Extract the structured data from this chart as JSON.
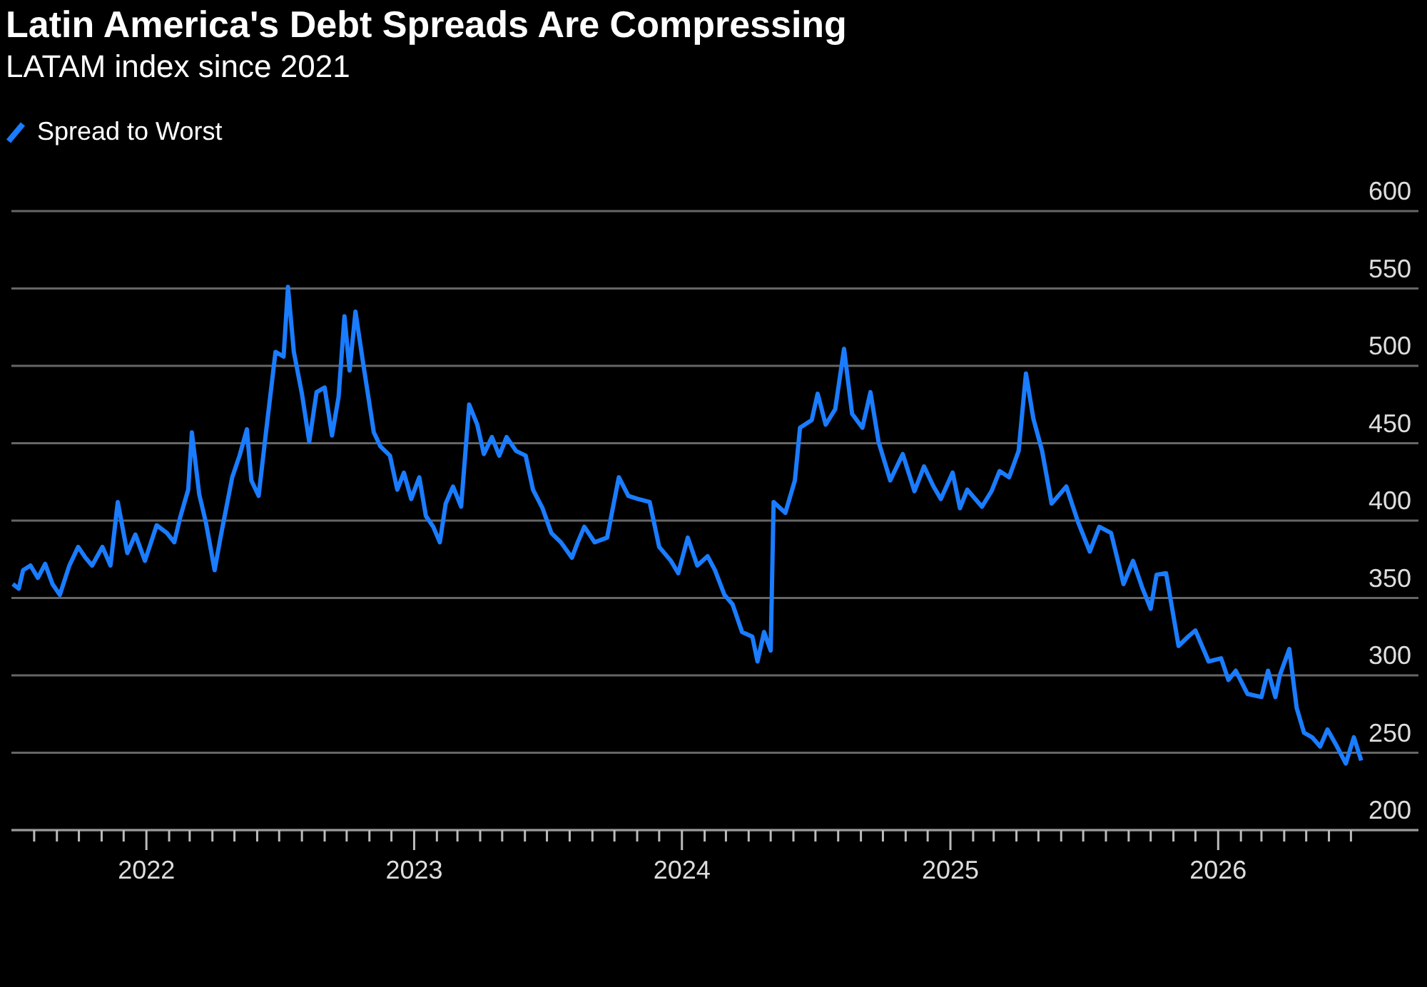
{
  "chart_data": {
    "type": "line",
    "title": "Latin America's Debt Spreads Are Compressing",
    "subtitle": "LATAM index since 2021",
    "x": [
      "2021-07-03",
      "2021-07-11",
      "2021-07-17",
      "2021-07-27",
      "2021-08-06",
      "2021-08-16",
      "2021-08-26",
      "2021-09-05",
      "2021-09-18",
      "2021-09-30",
      "2021-10-10",
      "2021-10-19",
      "2021-11-02",
      "2021-11-13",
      "2021-11-23",
      "2021-12-06",
      "2021-12-17",
      "2021-12-30",
      "2022-01-15",
      "2022-01-29",
      "2022-02-08",
      "2022-02-16",
      "2022-02-27",
      "2022-03-04",
      "2022-03-14",
      "2022-03-23",
      "2022-04-04",
      "2022-04-12",
      "2022-04-28",
      "2022-05-08",
      "2022-05-18",
      "2022-05-24",
      "2022-06-03",
      "2022-06-13",
      "2022-06-26",
      "2022-07-07",
      "2022-07-13",
      "2022-07-21",
      "2022-08-01",
      "2022-08-11",
      "2022-08-21",
      "2022-09-01",
      "2022-09-11",
      "2022-09-20",
      "2022-09-28",
      "2022-10-05",
      "2022-10-13",
      "2022-10-24",
      "2022-11-07",
      "2022-11-16",
      "2022-11-29",
      "2022-12-09",
      "2022-12-18",
      "2022-12-28",
      "2023-01-08",
      "2023-01-17",
      "2023-01-27",
      "2023-02-05",
      "2023-02-13",
      "2023-02-23",
      "2023-03-06",
      "2023-03-17",
      "2023-03-28",
      "2023-04-06",
      "2023-04-17",
      "2023-04-27",
      "2023-05-07",
      "2023-05-20",
      "2023-06-02",
      "2023-06-12",
      "2023-06-25",
      "2023-07-07",
      "2023-07-20",
      "2023-08-04",
      "2023-08-12",
      "2023-08-21",
      "2023-09-04",
      "2023-09-21",
      "2023-10-07",
      "2023-10-20",
      "2023-11-02",
      "2023-11-18",
      "2023-12-01",
      "2023-12-17",
      "2023-12-27",
      "2024-01-09",
      "2024-01-22",
      "2024-02-05",
      "2024-02-15",
      "2024-02-28",
      "2024-03-10",
      "2024-03-23",
      "2024-04-06",
      "2024-04-13",
      "2024-04-22",
      "2024-05-01",
      "2024-05-05",
      "2024-05-21",
      "2024-06-03",
      "2024-06-10",
      "2024-06-26",
      "2024-07-04",
      "2024-07-15",
      "2024-07-28",
      "2024-08-09",
      "2024-08-20",
      "2024-09-03",
      "2024-09-14",
      "2024-09-25",
      "2024-10-11",
      "2024-10-28",
      "2024-11-13",
      "2024-11-26",
      "2024-12-09",
      "2024-12-19",
      "2025-01-04",
      "2025-01-14",
      "2025-01-24",
      "2025-02-13",
      "2025-02-26",
      "2025-03-09",
      "2025-03-22",
      "2025-04-04",
      "2025-04-14",
      "2025-04-24",
      "2025-05-06",
      "2025-05-19",
      "2025-06-08",
      "2025-06-24",
      "2025-07-10",
      "2025-07-23",
      "2025-08-08",
      "2025-08-25",
      "2025-09-07",
      "2025-09-20",
      "2025-10-01",
      "2025-10-09",
      "2025-10-22",
      "2025-11-08",
      "2025-11-21",
      "2025-12-01",
      "2025-12-19",
      "2026-01-05",
      "2026-01-15",
      "2026-01-25",
      "2026-02-10",
      "2026-03-01",
      "2026-03-10",
      "2026-03-20",
      "2026-03-26",
      "2026-04-08",
      "2026-04-18",
      "2026-04-28",
      "2026-05-09",
      "2026-05-20",
      "2026-05-30",
      "2026-06-12",
      "2026-06-24",
      "2026-07-05",
      "2026-07-15"
    ],
    "series": [
      {
        "name": "Spread to Worst",
        "color": "#1a7cff",
        "values": [
          359,
          356,
          368,
          371,
          363,
          372,
          359,
          352,
          371,
          383,
          376,
          371,
          383,
          371,
          412,
          379,
          391,
          374,
          397,
          392,
          386,
          402,
          420,
          457,
          417,
          399,
          368,
          389,
          428,
          442,
          459,
          426,
          416,
          457,
          509,
          506,
          551,
          509,
          482,
          451,
          483,
          486,
          455,
          480,
          532,
          497,
          535,
          500,
          457,
          448,
          442,
          420,
          431,
          414,
          428,
          403,
          396,
          386,
          411,
          422,
          409,
          475,
          462,
          443,
          454,
          442,
          454,
          445,
          442,
          420,
          408,
          392,
          386,
          376,
          386,
          396,
          386,
          389,
          428,
          416,
          414,
          412,
          383,
          374,
          366,
          389,
          371,
          377,
          368,
          352,
          346,
          328,
          325,
          309,
          328,
          316,
          412,
          405,
          426,
          460,
          465,
          482,
          462,
          472,
          511,
          469,
          460,
          483,
          451,
          426,
          443,
          419,
          435,
          422,
          414,
          431,
          408,
          420,
          409,
          419,
          432,
          428,
          445,
          495,
          466,
          445,
          411,
          422,
          399,
          380,
          396,
          392,
          359,
          374,
          356,
          343,
          365,
          366,
          319,
          325,
          329,
          309,
          311,
          297,
          303,
          288,
          286,
          303,
          286,
          300,
          317,
          279,
          263,
          260,
          254,
          265,
          254,
          243,
          260,
          245
        ]
      }
    ],
    "xlim": [
      "2021-07-01",
      "2026-10-01"
    ],
    "xticks": [
      {
        "value": "2021-08-01",
        "label": null
      },
      {
        "value": "2021-09-01",
        "label": null
      },
      {
        "value": "2021-10-01",
        "label": null
      },
      {
        "value": "2021-11-01",
        "label": null
      },
      {
        "value": "2021-12-01",
        "label": null
      },
      {
        "value": "2022-01-01",
        "label": "2022"
      },
      {
        "value": "2022-02-01",
        "label": null
      },
      {
        "value": "2022-03-01",
        "label": null
      },
      {
        "value": "2022-04-01",
        "label": null
      },
      {
        "value": "2022-05-01",
        "label": null
      },
      {
        "value": "2022-06-01",
        "label": null
      },
      {
        "value": "2022-07-01",
        "label": null
      },
      {
        "value": "2022-08-01",
        "label": null
      },
      {
        "value": "2022-09-01",
        "label": null
      },
      {
        "value": "2022-10-01",
        "label": null
      },
      {
        "value": "2022-11-01",
        "label": null
      },
      {
        "value": "2022-12-01",
        "label": null
      },
      {
        "value": "2023-01-01",
        "label": "2023"
      },
      {
        "value": "2023-02-01",
        "label": null
      },
      {
        "value": "2023-03-01",
        "label": null
      },
      {
        "value": "2023-04-01",
        "label": null
      },
      {
        "value": "2023-05-01",
        "label": null
      },
      {
        "value": "2023-06-01",
        "label": null
      },
      {
        "value": "2023-07-01",
        "label": null
      },
      {
        "value": "2023-08-01",
        "label": null
      },
      {
        "value": "2023-09-01",
        "label": null
      },
      {
        "value": "2023-10-01",
        "label": null
      },
      {
        "value": "2023-11-01",
        "label": null
      },
      {
        "value": "2023-12-01",
        "label": null
      },
      {
        "value": "2024-01-01",
        "label": "2024"
      },
      {
        "value": "2024-02-01",
        "label": null
      },
      {
        "value": "2024-03-01",
        "label": null
      },
      {
        "value": "2024-04-01",
        "label": null
      },
      {
        "value": "2024-05-01",
        "label": null
      },
      {
        "value": "2024-06-01",
        "label": null
      },
      {
        "value": "2024-07-01",
        "label": null
      },
      {
        "value": "2024-08-01",
        "label": null
      },
      {
        "value": "2024-09-01",
        "label": null
      },
      {
        "value": "2024-10-01",
        "label": null
      },
      {
        "value": "2024-11-01",
        "label": null
      },
      {
        "value": "2024-12-01",
        "label": null
      },
      {
        "value": "2025-01-01",
        "label": "2025"
      },
      {
        "value": "2025-02-01",
        "label": null
      },
      {
        "value": "2025-03-01",
        "label": null
      },
      {
        "value": "2025-04-01",
        "label": null
      },
      {
        "value": "2025-05-01",
        "label": null
      },
      {
        "value": "2025-06-01",
        "label": null
      },
      {
        "value": "2025-07-01",
        "label": null
      },
      {
        "value": "2025-08-01",
        "label": null
      },
      {
        "value": "2025-09-01",
        "label": null
      },
      {
        "value": "2025-10-01",
        "label": null
      },
      {
        "value": "2025-11-01",
        "label": null
      },
      {
        "value": "2025-12-01",
        "label": null
      },
      {
        "value": "2026-01-01",
        "label": "2026"
      },
      {
        "value": "2026-02-01",
        "label": null
      },
      {
        "value": "2026-03-01",
        "label": null
      },
      {
        "value": "2026-04-01",
        "label": null
      },
      {
        "value": "2026-05-01",
        "label": null
      },
      {
        "value": "2026-06-01",
        "label": null
      },
      {
        "value": "2026-07-01",
        "label": null
      }
    ],
    "ylim": [
      200,
      600
    ],
    "yticks": [
      200,
      250,
      300,
      350,
      400,
      450,
      500,
      550,
      600
    ],
    "grid": "y",
    "legend": "top left",
    "marker": "none",
    "line_style": "solid"
  }
}
